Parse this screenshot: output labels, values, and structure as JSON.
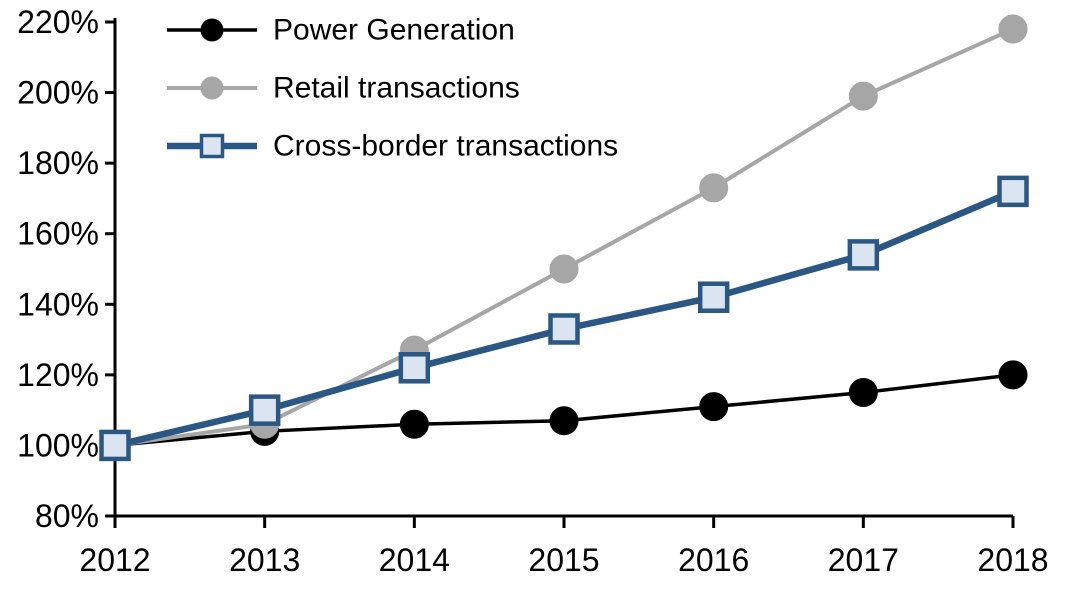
{
  "chart_data": {
    "type": "line",
    "title": "",
    "xlabel": "",
    "ylabel": "",
    "categories": [
      "2012",
      "2013",
      "2014",
      "2015",
      "2016",
      "2017",
      "2018"
    ],
    "series": [
      {
        "name": "Power Generation",
        "marker": "circle",
        "color": "#000000",
        "marker_fill": "#000000",
        "values": [
          100,
          104,
          106,
          107,
          111,
          115,
          120
        ]
      },
      {
        "name": "Retail transactions",
        "marker": "circle",
        "color": "#A6A6A6",
        "marker_fill": "#A6A6A6",
        "values": [
          100,
          106,
          127,
          150,
          173,
          199,
          218
        ]
      },
      {
        "name": "Cross-border transactions",
        "marker": "square",
        "color": "#2A5783",
        "marker_fill": "#DBE5F1",
        "values": [
          100,
          110,
          122,
          133,
          142,
          154,
          172
        ]
      }
    ],
    "ylim": [
      80,
      220
    ],
    "ytick_step": 20,
    "ytick_suffix": "%",
    "grid": false,
    "legend_position": "top-left",
    "axis_color": "#000000",
    "background_color": "#FFFFFF"
  }
}
